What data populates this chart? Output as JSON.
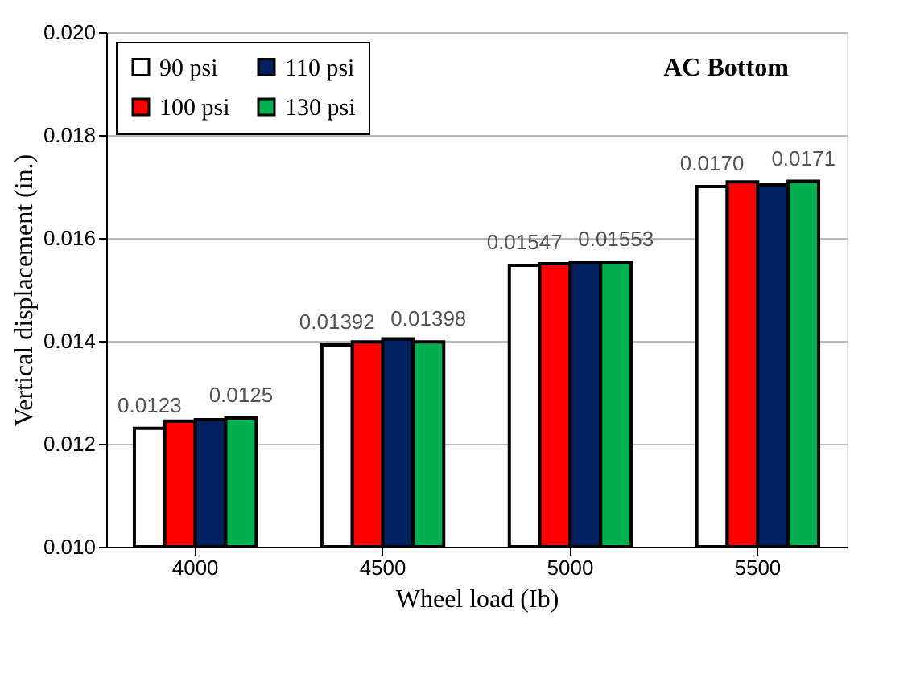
{
  "chart_data": {
    "type": "bar",
    "title": "AC Bottom",
    "xlabel": "Wheel load (Ib)",
    "ylabel": "Vertical displacement (in.)",
    "categories": [
      "4000",
      "4500",
      "5000",
      "5500"
    ],
    "series": [
      {
        "name": "90 psi",
        "color": "#ffffff",
        "values": [
          0.0123,
          0.01392,
          0.01547,
          0.017
        ],
        "value_labels": [
          "0.0123",
          "0.01392",
          "0.01547",
          "0.0170"
        ]
      },
      {
        "name": "100 psi",
        "color": "#ff0000",
        "values": [
          0.01244,
          0.01398,
          0.0155,
          0.01709
        ]
      },
      {
        "name": "110 psi",
        "color": "#002060",
        "values": [
          0.01247,
          0.01404,
          0.01553,
          0.01703
        ]
      },
      {
        "name": "130 psi",
        "color": "#00b050",
        "values": [
          0.0125,
          0.01398,
          0.01553,
          0.0171
        ],
        "value_labels": [
          "0.0125",
          "0.01398",
          "0.01553",
          "0.0171"
        ]
      }
    ],
    "ylim": [
      0.01,
      0.02
    ],
    "yticks": [
      "0.010",
      "0.012",
      "0.014",
      "0.016",
      "0.018",
      "0.020"
    ],
    "grid": "y",
    "legend": "top left"
  }
}
